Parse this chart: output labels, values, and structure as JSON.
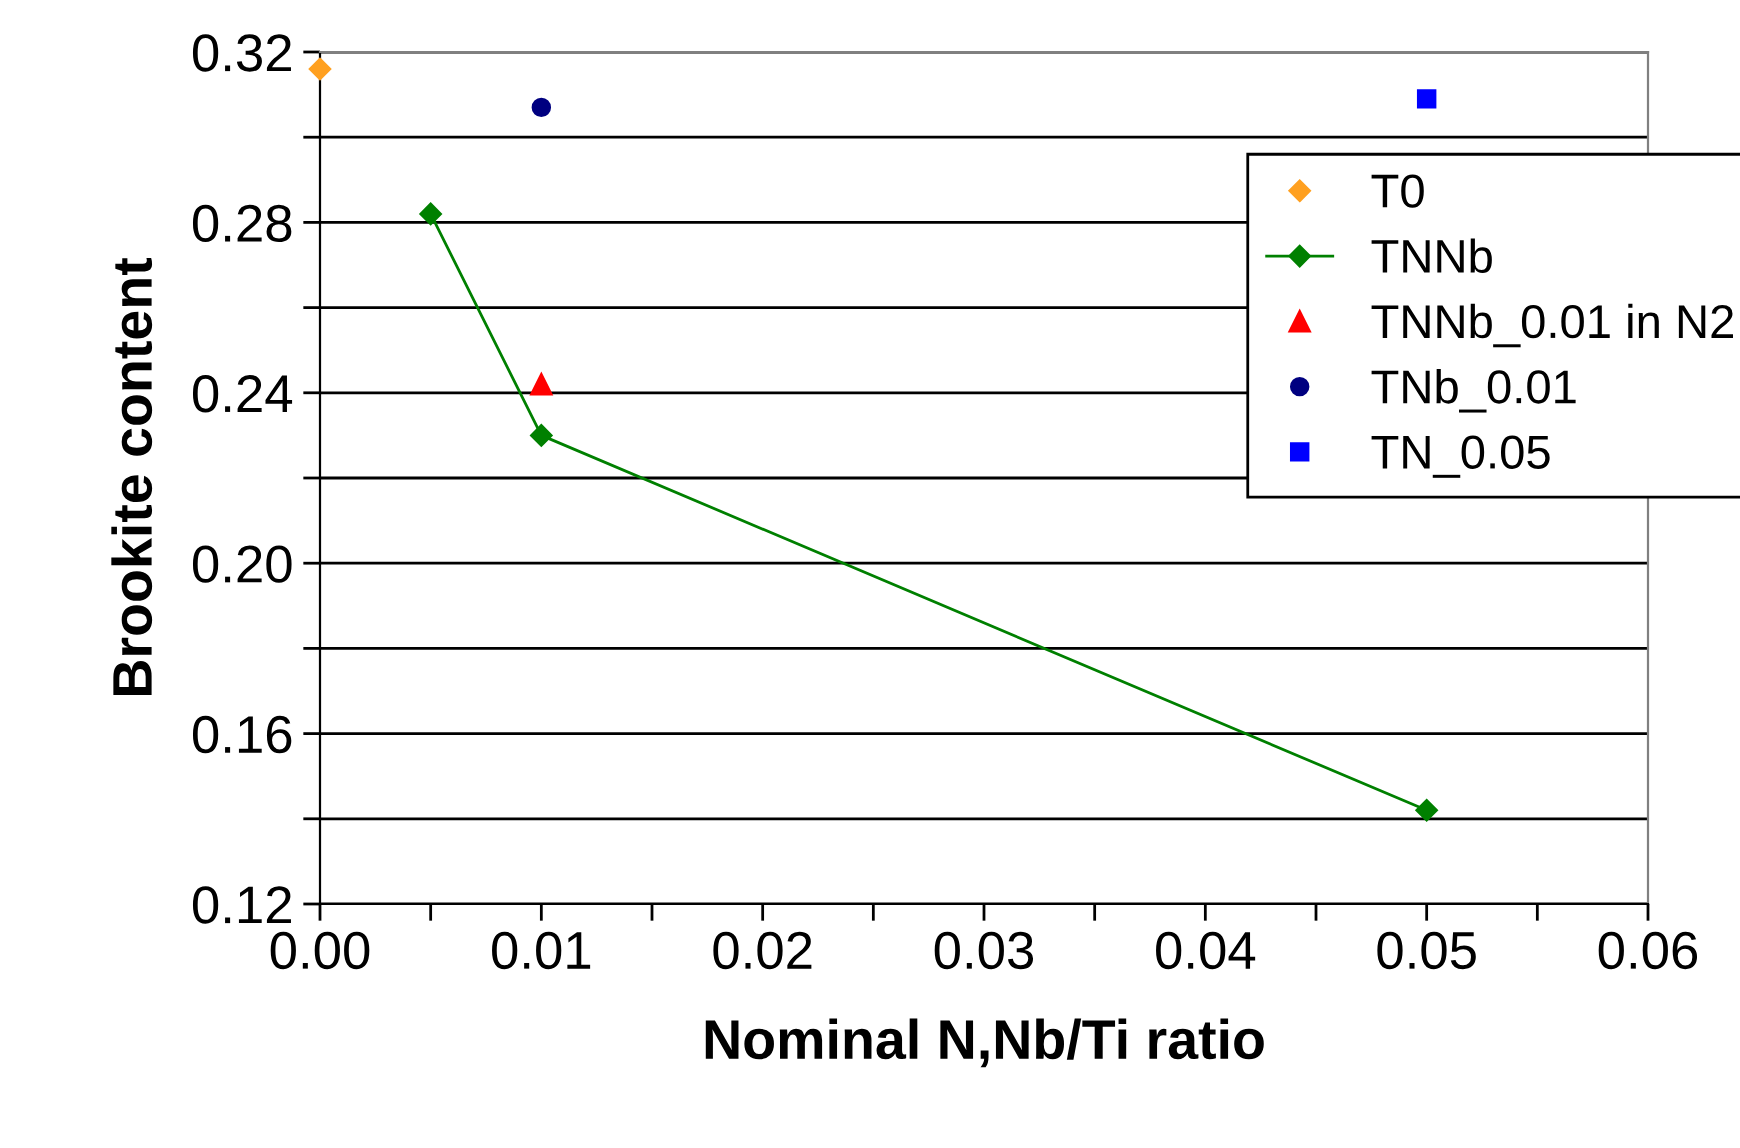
{
  "chart_data": {
    "type": "scatter",
    "xlabel": "Nominal N,Nb/Ti ratio",
    "ylabel": "Brookite content",
    "xlim": [
      0,
      0.06
    ],
    "ylim": [
      0.12,
      0.32
    ],
    "xticks": [
      {
        "value": 0,
        "label": "0.00"
      },
      {
        "value": 0.005,
        "label": null
      },
      {
        "value": 0.01,
        "label": "0.01"
      },
      {
        "value": 0.015,
        "label": null
      },
      {
        "value": 0.02,
        "label": "0.02"
      },
      {
        "value": 0.025,
        "label": null
      },
      {
        "value": 0.03,
        "label": "0.03"
      },
      {
        "value": 0.035,
        "label": null
      },
      {
        "value": 0.04,
        "label": "0.04"
      },
      {
        "value": 0.045,
        "label": null
      },
      {
        "value": 0.05,
        "label": "0.05"
      },
      {
        "value": 0.055,
        "label": null
      },
      {
        "value": 0.06,
        "label": "0.06"
      }
    ],
    "yticks": [
      {
        "value": 0.12,
        "label": "0.12"
      },
      {
        "value": 0.14,
        "label": null
      },
      {
        "value": 0.16,
        "label": "0.16"
      },
      {
        "value": 0.18,
        "label": null
      },
      {
        "value": 0.2,
        "label": "0.20"
      },
      {
        "value": 0.22,
        "label": null
      },
      {
        "value": 0.24,
        "label": "0.24"
      },
      {
        "value": 0.26,
        "label": null
      },
      {
        "value": 0.28,
        "label": "0.28"
      },
      {
        "value": 0.3,
        "label": null
      },
      {
        "value": 0.32,
        "label": "0.32"
      }
    ],
    "grid": "y",
    "legend": "top right",
    "series": [
      {
        "name": "T0",
        "color": "#ffa020",
        "marker": "diamond",
        "x": [
          0
        ],
        "values": [
          0.316
        ]
      },
      {
        "name": "TNNb",
        "type": "line",
        "color": "#008000",
        "marker": "diamond",
        "line_style": "solid",
        "x": [
          0.005,
          0.01,
          0.05
        ],
        "values": [
          0.282,
          0.23,
          0.142
        ]
      },
      {
        "name": "TNNb_0.01 in N2",
        "color": "#ff0000",
        "marker": "triangle",
        "x": [
          0.01
        ],
        "values": [
          0.242
        ]
      },
      {
        "name": "TNb_0.01",
        "color": "#000080",
        "marker": "circle",
        "x": [
          0.01
        ],
        "values": [
          0.307
        ]
      },
      {
        "name": "TN_0.05",
        "color": "#0000ff",
        "marker": "square",
        "x": [
          0.05
        ],
        "values": [
          0.309
        ]
      }
    ]
  }
}
